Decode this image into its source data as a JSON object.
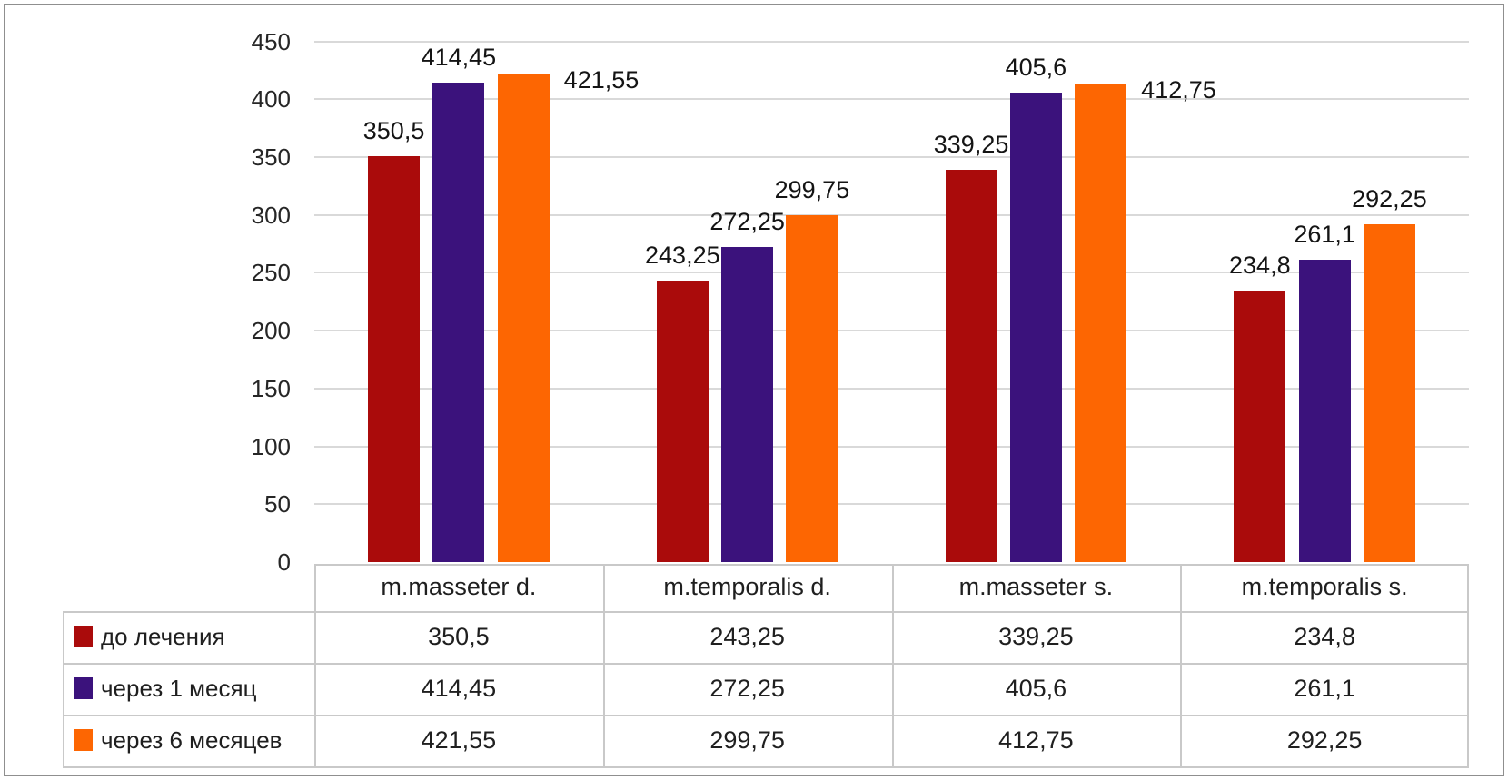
{
  "chart_data": {
    "type": "bar",
    "categories": [
      "m.masseter d.",
      "m.temporalis d.",
      "m.masseter s.",
      "m.temporalis s."
    ],
    "series": [
      {
        "name": "до лечения",
        "color": "#aa0b0b",
        "values": [
          350.5,
          243.25,
          339.25,
          234.8
        ],
        "labels": [
          "350,5",
          "243,25",
          "339,25",
          "234,8"
        ]
      },
      {
        "name": "через 1 месяц",
        "color": "#3b127c",
        "values": [
          414.45,
          272.25,
          405.6,
          261.1
        ],
        "labels": [
          "414,45",
          "272,25",
          "405,6",
          "261,1"
        ]
      },
      {
        "name": "через 6 месяцев",
        "color": "#fd6602",
        "values": [
          421.55,
          299.75,
          412.75,
          292.25
        ],
        "labels": [
          "421,55",
          "299,75",
          "412,75",
          "292,25"
        ]
      }
    ],
    "y_axis": {
      "min": 0,
      "max": 450,
      "step": 50,
      "ticks": [
        "0",
        "50",
        "100",
        "150",
        "200",
        "250",
        "300",
        "350",
        "400",
        "450"
      ]
    },
    "grid": true,
    "legend_position": "data-table-left-column",
    "data_labels": true,
    "label_placement_overrides": [
      {
        "series": 2,
        "category": 0,
        "placement": "right"
      },
      {
        "series": 2,
        "category": 2,
        "placement": "right"
      }
    ],
    "colors": {
      "gridline": "#d9d9d9",
      "table_border": "#c9c9c9",
      "frame_border": "#8f8f8f",
      "text": "#1f1f1f"
    }
  }
}
